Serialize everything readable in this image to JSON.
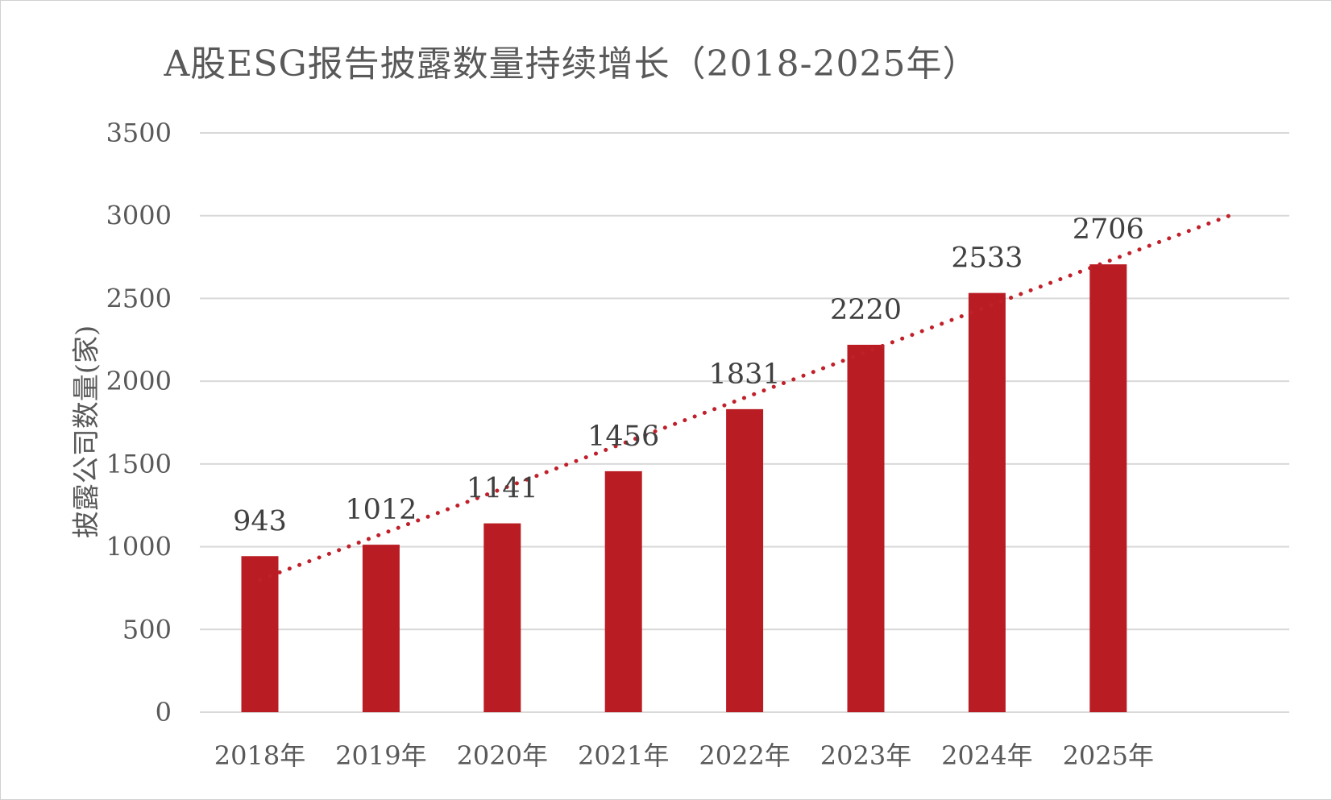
{
  "chart_data": {
    "type": "bar",
    "title": "A股ESG报告披露数量持续增长（2018-2025年）",
    "ylabel": "披露公司数量(家)",
    "xlabel": "",
    "categories": [
      "2018年",
      "2019年",
      "2020年",
      "2021年",
      "2022年",
      "2023年",
      "2024年",
      "2025年"
    ],
    "values": [
      943,
      1012,
      1141,
      1456,
      1831,
      2220,
      2533,
      2706
    ],
    "data_labels": [
      "943",
      "1012",
      "1141",
      "1456",
      "1831",
      "2220",
      "2533",
      "2706"
    ],
    "ylim": [
      0,
      3500
    ],
    "y_ticks": [
      0,
      500,
      1000,
      1500,
      2000,
      2500,
      3000,
      3500
    ],
    "y_tick_labels": [
      "0",
      "500",
      "1000",
      "1500",
      "2000",
      "2500",
      "3000",
      "3500"
    ],
    "grid": true,
    "legend": "none",
    "trendline": {
      "type": "linear",
      "style": "dotted",
      "color": "#c0202a",
      "start": 800,
      "end": 3000
    },
    "colors": {
      "bar": "#b91c22",
      "grid": "#d9d9d9",
      "text": "#595959"
    }
  }
}
